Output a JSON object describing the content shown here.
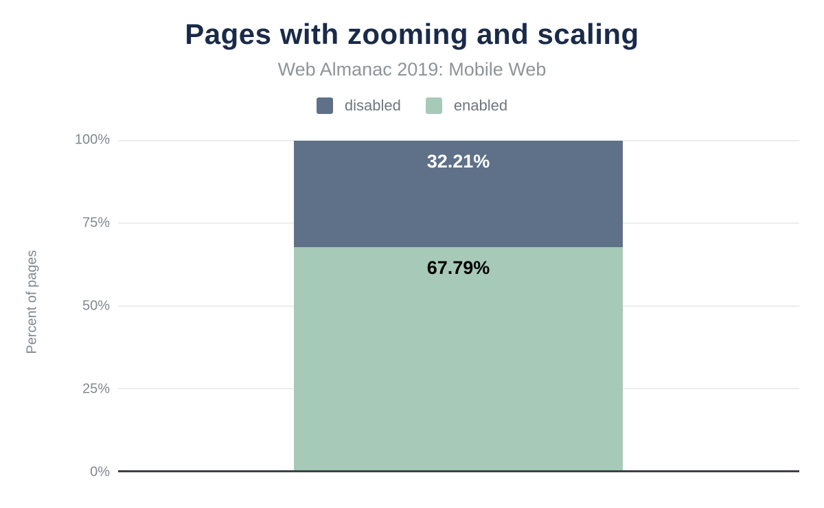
{
  "chart_data": {
    "type": "bar",
    "stacked": true,
    "orientation": "vertical",
    "title": "Pages with zooming and scaling",
    "subtitle": "Web Almanac 2019: Mobile Web",
    "xlabel": "",
    "ylabel": "Percent of pages",
    "ylim": [
      0,
      100
    ],
    "yticks": [
      "100%",
      "75%",
      "50%",
      "25%",
      "0%"
    ],
    "grid": true,
    "legend_position": "top",
    "categories": [
      ""
    ],
    "series": [
      {
        "name": "disabled",
        "values": [
          32.21
        ],
        "data_label": "32.21%",
        "color": "#5f7089",
        "label_color": "#ffffff"
      },
      {
        "name": "enabled",
        "values": [
          67.79
        ],
        "data_label": "67.79%",
        "color": "#a6c9b8",
        "label_color": "#000000"
      }
    ],
    "colors": {
      "title": "#1a2b49",
      "subtitle": "#8e9499",
      "axis_line": "#3a414a",
      "gridline": "#ededed",
      "tick_label": "#81888f"
    }
  }
}
